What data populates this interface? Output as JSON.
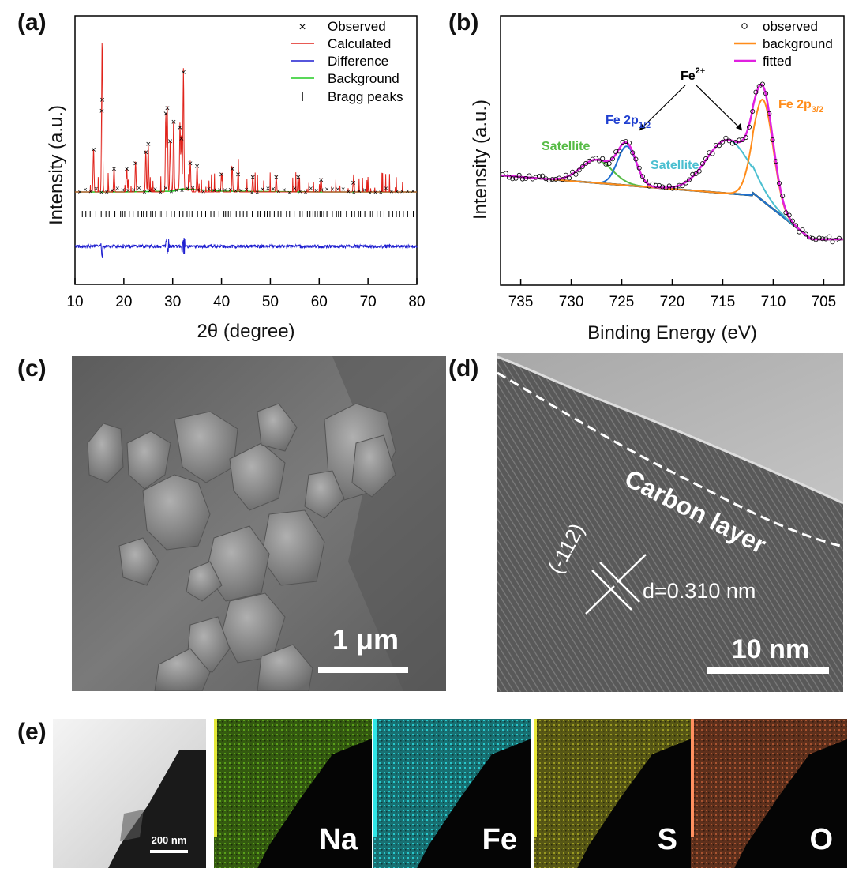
{
  "panels": {
    "a": "(a)",
    "b": "(b)",
    "c": "(c)",
    "d": "(d)",
    "e": "(e)"
  },
  "panel_a": {
    "ylabel": "Intensity (a.u.)",
    "xlabel": "2θ (degree)",
    "xticks": [
      "10",
      "20",
      "30",
      "40",
      "50",
      "60",
      "70",
      "80"
    ],
    "legend": [
      "Observed",
      "Calculated",
      "Difference",
      "Background",
      "Bragg peaks"
    ],
    "colors": {
      "observed": "#000000",
      "calculated": "#e0231b",
      "difference": "#1f1fd0",
      "background": "#22cc22",
      "bragg": "#000000"
    }
  },
  "panel_b": {
    "ylabel": "Intensity (a.u.)",
    "xlabel": "Binding Energy (eV)",
    "xticks": [
      "735",
      "730",
      "725",
      "720",
      "715",
      "710",
      "705"
    ],
    "legend": [
      "observed",
      "background",
      "fitted"
    ],
    "annotations": {
      "fe2": "Fe",
      "fe2_sup": "2+",
      "fe2p12": "Fe 2p",
      "fe2p12_sub": "1/2",
      "fe2p32": "Fe 2p",
      "fe2p32_sub": "3/2",
      "sat_left": "Satellite",
      "sat_right": "Satellite"
    },
    "colors": {
      "fitted": "#e020e0",
      "background": "#ff8c1a",
      "fe12": "#1f6fd0",
      "sat_left": "#55bb44",
      "sat_right": "#4bbfd0",
      "baseline": "#000000"
    }
  },
  "chart_data": [
    {
      "type": "line",
      "panel": "a",
      "xlabel": "2θ (degree)",
      "ylabel": "Intensity (a.u.)",
      "xlim": [
        10,
        80
      ],
      "series": [
        {
          "name": "Observed",
          "x": [
            13.8,
            15.5,
            15.6,
            18.0,
            20.6,
            22.4,
            24.5,
            25.0,
            28.6,
            28.9,
            29.5,
            30.2,
            31.5,
            31.8,
            32.2,
            33.6,
            35.0,
            40.0,
            42.2,
            43.4,
            46.4,
            51.2,
            55.7,
            60.4,
            67.0
          ],
          "y": [
            32,
            60,
            68,
            18,
            18,
            22,
            30,
            36,
            58,
            62,
            38,
            52,
            48,
            40,
            88,
            22,
            20,
            14,
            18,
            14,
            12,
            12,
            12,
            10,
            8
          ]
        },
        {
          "name": "Calculated",
          "x": [
            13.8,
            15.5,
            18.0,
            20.6,
            24.5,
            25.0,
            28.9,
            30.2,
            31.8,
            32.2,
            35.0,
            40.0,
            42.2,
            51.2,
            55.7,
            67.0
          ],
          "y": [
            30,
            62,
            18,
            18,
            30,
            36,
            60,
            50,
            40,
            84,
            20,
            14,
            18,
            12,
            12,
            8
          ]
        },
        {
          "name": "Background",
          "x": [
            10,
            20,
            30,
            32,
            40,
            60,
            80
          ],
          "y": [
            2,
            2,
            3,
            6,
            3,
            2,
            2
          ]
        }
      ]
    },
    {
      "type": "line",
      "panel": "b",
      "xlabel": "Binding Energy (eV)",
      "ylabel": "Intensity (a.u.)",
      "xlim": [
        737,
        703
      ],
      "series": [
        {
          "name": "fitted",
          "x": [
            737,
            732,
            728,
            726,
            724.5,
            723,
            721,
            718,
            716,
            714,
            712.5,
            711,
            710,
            709,
            707,
            703
          ],
          "y": [
            0.62,
            0.66,
            0.7,
            0.74,
            0.82,
            0.66,
            0.52,
            0.5,
            0.6,
            0.73,
            0.8,
            1.0,
            0.86,
            0.55,
            0.32,
            0.3
          ]
        },
        {
          "name": "background",
          "x": [
            719,
            715,
            713,
            712,
            711,
            710,
            709,
            708
          ],
          "y": [
            0.5,
            0.46,
            0.5,
            0.65,
            0.92,
            0.8,
            0.48,
            0.36
          ]
        },
        {
          "name": "observed",
          "x": [
            737,
            733,
            730,
            728,
            726,
            724.5,
            723,
            721,
            719,
            717,
            715,
            713,
            712,
            711,
            710,
            709,
            708,
            706,
            704,
            703
          ],
          "y": [
            0.62,
            0.64,
            0.67,
            0.7,
            0.75,
            0.82,
            0.64,
            0.53,
            0.5,
            0.54,
            0.66,
            0.76,
            0.84,
            1.0,
            0.88,
            0.55,
            0.34,
            0.28,
            0.27,
            0.25
          ]
        }
      ]
    }
  ],
  "panel_c": {
    "scale_text": "1 μm"
  },
  "panel_d": {
    "carbon_text": "Carbon layer",
    "plane_text": "(-112)",
    "d_text": "d=0.310 nm",
    "scale_text": "10 nm"
  },
  "panel_e": {
    "scale_text": "200 nm",
    "maps": [
      {
        "label": "Na",
        "color": "#5aa01a",
        "bar": "#e4e83a"
      },
      {
        "label": "Fe",
        "color": "#28c8cc",
        "bar": "#2ee6e6"
      },
      {
        "label": "S",
        "color": "#9a9a22",
        "bar": "#e8e83a"
      },
      {
        "label": "O",
        "color": "#a85330",
        "bar": "#ff9060"
      }
    ]
  }
}
